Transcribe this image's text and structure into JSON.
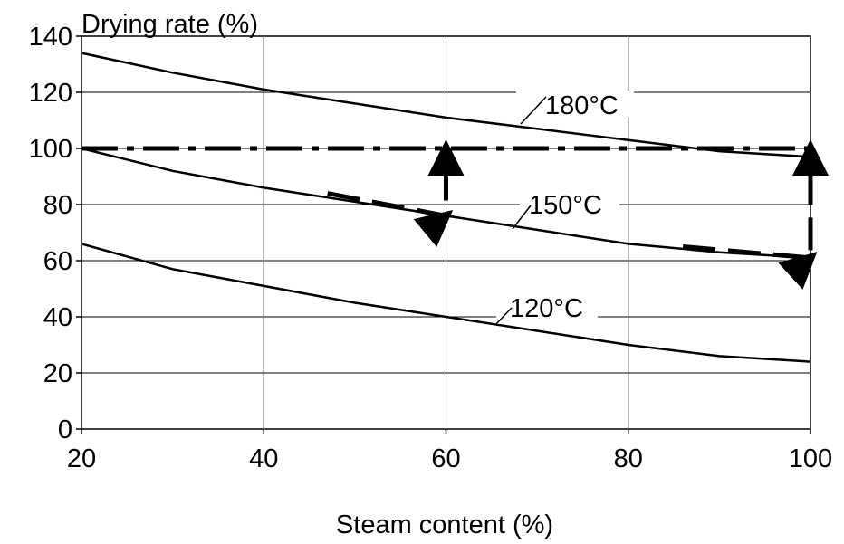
{
  "chart_data": {
    "type": "line",
    "title": "",
    "ylabel": "Drying rate (%)",
    "xlabel": "Steam content (%)",
    "xlim": [
      20,
      100
    ],
    "ylim": [
      0,
      140
    ],
    "xticks": [
      20,
      40,
      60,
      80,
      100
    ],
    "yticks": [
      0,
      20,
      40,
      60,
      80,
      100,
      120,
      140
    ],
    "grid": true,
    "series": [
      {
        "name": "180°C",
        "line_style": "solid",
        "x": [
          20,
          30,
          40,
          50,
          60,
          70,
          80,
          90,
          100
        ],
        "y": [
          134,
          127,
          121,
          116,
          111,
          107,
          103,
          99,
          97
        ]
      },
      {
        "name": "150°C",
        "line_style": "solid",
        "x": [
          20,
          30,
          40,
          50,
          60,
          70,
          80,
          90,
          100
        ],
        "y": [
          100,
          92,
          86,
          81,
          76,
          71,
          66,
          63,
          61
        ]
      },
      {
        "name": "120°C",
        "line_style": "solid",
        "x": [
          20,
          30,
          40,
          50,
          60,
          70,
          80,
          90,
          100
        ],
        "y": [
          66,
          57,
          51,
          45,
          40,
          35,
          30,
          26,
          24
        ]
      }
    ],
    "annotations": [
      {
        "kind": "reference-line",
        "line_style": "dash-dot",
        "x": [
          20,
          100
        ],
        "y": [
          100,
          100
        ]
      },
      {
        "kind": "arrow-path",
        "line_style": "dashed",
        "x": [
          47,
          60,
          60
        ],
        "y": [
          84,
          76,
          100
        ]
      },
      {
        "kind": "arrow-path",
        "line_style": "dashed",
        "x": [
          86,
          100,
          100
        ],
        "y": [
          65,
          61,
          100
        ]
      }
    ]
  }
}
